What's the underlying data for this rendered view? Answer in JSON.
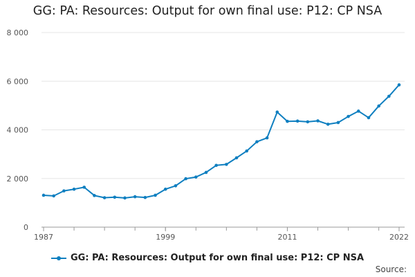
{
  "chart_data": {
    "type": "line",
    "title": "GG: PA: Resources: Output for own final use: P12: CP NSA",
    "x": [
      1987,
      1988,
      1989,
      1990,
      1991,
      1992,
      1993,
      1994,
      1995,
      1996,
      1997,
      1998,
      1999,
      2000,
      2001,
      2002,
      2003,
      2004,
      2005,
      2006,
      2007,
      2008,
      2009,
      2010,
      2011,
      2012,
      2013,
      2014,
      2015,
      2016,
      2017,
      2018,
      2019,
      2020,
      2021,
      2022
    ],
    "series": [
      {
        "name": "GG: PA: Resources: Output for own final use: P12: CP NSA",
        "values": [
          1310,
          1285,
          1490,
          1560,
          1640,
          1300,
          1210,
          1230,
          1200,
          1250,
          1220,
          1310,
          1560,
          1700,
          1990,
          2060,
          2250,
          2540,
          2580,
          2850,
          3130,
          3510,
          3670,
          4730,
          4350,
          4360,
          4330,
          4370,
          4230,
          4300,
          4550,
          4770,
          4500,
          4980,
          5380,
          5850
        ]
      }
    ],
    "xlabel": "",
    "ylabel": "",
    "xlim": [
      1987,
      2022
    ],
    "ylim": [
      0,
      8000
    ],
    "yticks": [
      0,
      2000,
      4000,
      6000,
      8000
    ],
    "ytick_labels": [
      "0",
      "2 000",
      "4 000",
      "6 000",
      "8 000"
    ],
    "xtick_labels": [
      "1987",
      "1999",
      "2011",
      "2022"
    ],
    "grid": "horizontal",
    "legend_position": "bottom",
    "colors": {
      "series": "#0f7fc0",
      "grid": "#e6e6e6",
      "axis": "#999999"
    }
  },
  "source_label": "Source:"
}
